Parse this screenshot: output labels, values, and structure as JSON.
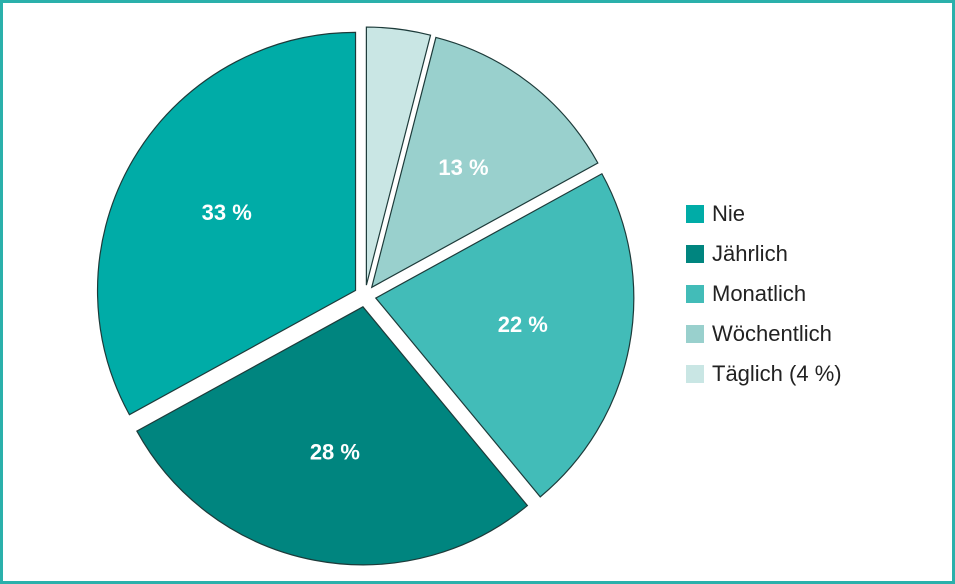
{
  "chart_data": {
    "type": "pie",
    "categories": [
      "Nie",
      "Jährlich",
      "Monatlich",
      "Wöchentlich",
      "Täglich (4 %)"
    ],
    "values": [
      33,
      28,
      22,
      13,
      4
    ],
    "value_labels": [
      "33 %",
      "28 %",
      "22 %",
      "13 %",
      null
    ],
    "colors": [
      "#00aca7",
      "#00857f",
      "#42bcb8",
      "#99d0cd",
      "#c9e6e4"
    ],
    "legend": "right"
  }
}
